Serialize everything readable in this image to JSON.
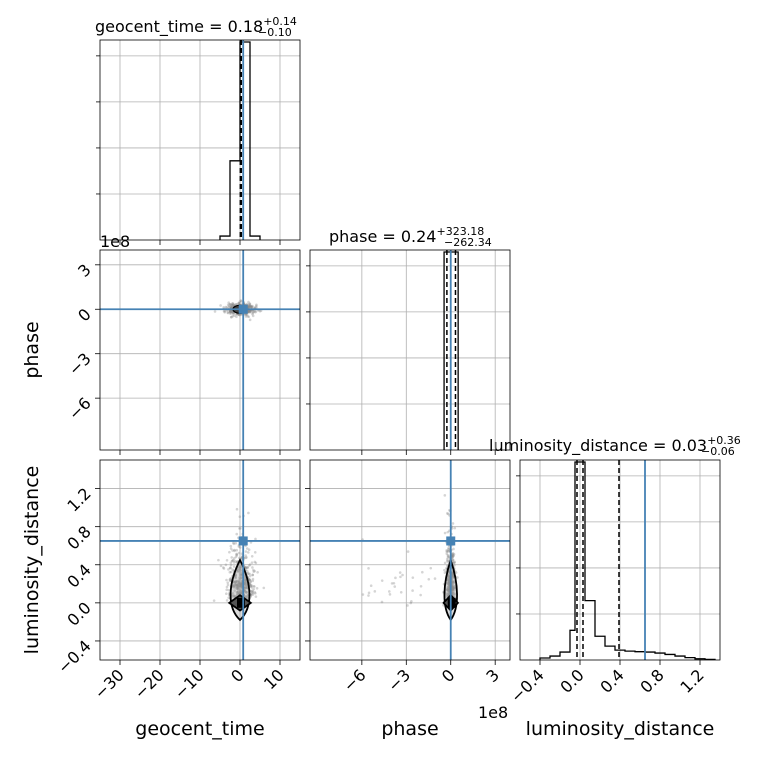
{
  "figure": {
    "type": "corner-plot",
    "colors": {
      "truth": "#4682b4",
      "hist": "#000000",
      "grid": "#b0b0b0",
      "points": "#888888",
      "contour_fill": "#999999"
    }
  },
  "parameters": [
    {
      "key": "geocent_time",
      "label": "geocent_time",
      "title_main": "geocent_time = 0.18",
      "title_sup": "+0.14",
      "title_sub": "−0.10"
    },
    {
      "key": "phase",
      "label": "phase",
      "title_main": "phase = 0.24",
      "title_sup": "+323.18",
      "title_sub": "−262.34",
      "offset_text_x": "1e8",
      "offset_text_y": "1e8"
    },
    {
      "key": "luminosity_distance",
      "label": "luminosity_distance",
      "title_main": "luminosity_distance = 0.03",
      "title_sup": "+0.36",
      "title_sub": "−0.06"
    }
  ],
  "chart_data": [
    {
      "type": "histogram",
      "parameter": "geocent_time",
      "xlim": [
        -35,
        15
      ],
      "xticks": [
        -30,
        -20,
        -10,
        0,
        10
      ],
      "tick_labels": [
        "−30",
        "−20",
        "−10",
        "0",
        "10"
      ],
      "bin_edges": [
        -5,
        -2.5,
        0,
        2.5,
        5
      ],
      "counts": [
        0.02,
        0.4,
        1.0,
        0.02
      ],
      "quantile_lines": [
        0.08,
        0.18,
        0.32
      ],
      "truth": 0.8,
      "grid": true
    },
    {
      "type": "histogram",
      "parameter": "phase",
      "xlim": [
        -9.5,
        4
      ],
      "xticks": [
        -6,
        -3,
        0,
        3
      ],
      "tick_labels": [
        "−6",
        "−3",
        "0",
        "3"
      ],
      "bin_edges": [
        -0.45,
        0.5
      ],
      "counts": [
        1.0
      ],
      "quantile_lines": [
        -0.26,
        0,
        0.32
      ],
      "truth": 0,
      "grid": true
    },
    {
      "type": "histogram",
      "parameter": "luminosity_distance",
      "xlim": [
        -0.6,
        1.4
      ],
      "xticks": [
        -0.4,
        0.0,
        0.4,
        0.8,
        1.2
      ],
      "tick_labels": [
        "−0.4",
        "0.0",
        "0.4",
        "0.8",
        "1.2"
      ],
      "bin_edges": [
        -0.4,
        -0.3,
        -0.2,
        -0.1,
        -0.05,
        0.05,
        0.15,
        0.25,
        0.35,
        0.45,
        0.55,
        0.65,
        0.75,
        0.85,
        0.95,
        1.05,
        1.15,
        1.25,
        1.35
      ],
      "counts": [
        0.01,
        0.02,
        0.04,
        0.15,
        1.0,
        0.3,
        0.12,
        0.07,
        0.05,
        0.045,
        0.042,
        0.04,
        0.035,
        0.028,
        0.02,
        0.012,
        0.006,
        0.003
      ],
      "quantile_lines": [
        -0.03,
        0.03,
        0.39
      ],
      "truth": 0.65,
      "grid": true
    },
    {
      "type": "scatter",
      "x": "geocent_time",
      "y": "phase",
      "xlim": [
        -35,
        15
      ],
      "ylim": [
        -9.5,
        4
      ],
      "yticks": [
        -6,
        -3,
        0,
        3
      ],
      "ytick_labels": [
        "−6",
        "−3",
        "0",
        "3"
      ],
      "truth": [
        0.8,
        0
      ],
      "grid": true
    },
    {
      "type": "scatter",
      "x": "geocent_time",
      "y": "luminosity_distance",
      "xlim": [
        -35,
        15
      ],
      "ylim": [
        -0.6,
        1.5
      ],
      "yticks": [
        -0.4,
        0.0,
        0.4,
        0.8,
        1.2
      ],
      "ytick_labels": [
        "−0.4",
        "0.0",
        "0.4",
        "0.8",
        "1.2"
      ],
      "truth": [
        0.8,
        0.65
      ],
      "grid": true
    },
    {
      "type": "scatter",
      "x": "phase",
      "y": "luminosity_distance",
      "xlim": [
        -9.5,
        4
      ],
      "ylim": [
        -0.6,
        1.5
      ],
      "truth": [
        0,
        0.65
      ],
      "grid": true
    }
  ]
}
